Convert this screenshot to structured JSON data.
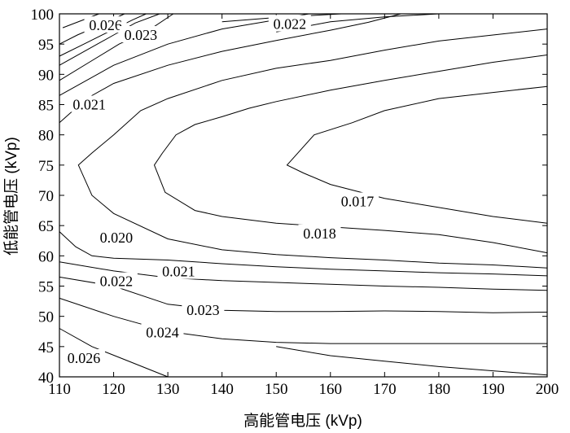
{
  "chart_data": {
    "type": "contour",
    "xlabel": "高能管电压 (kVp)",
    "ylabel": "低能管电压 (kVp)",
    "xlim": [
      110,
      200
    ],
    "ylim": [
      40,
      100
    ],
    "x_ticks": [
      "110",
      "120",
      "130",
      "140",
      "150",
      "160",
      "170",
      "180",
      "190",
      "200"
    ],
    "y_ticks": [
      "40",
      "45",
      "50",
      "55",
      "60",
      "65",
      "70",
      "75",
      "80",
      "85",
      "90",
      "95",
      "100"
    ],
    "grid": false,
    "contours": [
      {
        "level": "0.026",
        "points": [
          [
            110.6,
            97.7
          ],
          [
            117.3,
            100.0
          ]
        ],
        "label_at": [
          118.5,
          98.1
        ]
      },
      {
        "level": "0.026",
        "points": [
          [
            110.0,
            48.0
          ],
          [
            116.0,
            45.0
          ],
          [
            123.0,
            42.5
          ],
          [
            130.0,
            40.0
          ]
        ],
        "label_at": [
          114.5,
          43.1
        ]
      },
      {
        "level": "0.023",
        "points": [
          [
            110.0,
            95.0
          ],
          [
            113.3,
            96.5
          ],
          [
            118.0,
            98.3
          ],
          [
            122.0,
            100.0
          ]
        ],
        "label_at": null
      },
      {
        "level": "0.023",
        "points": [
          [
            110.0,
            93.0
          ],
          [
            114.5,
            95.0
          ],
          [
            119.0,
            97.0
          ],
          [
            123.5,
            99.0
          ],
          [
            126.0,
            100.0
          ]
        ],
        "label_at": null
      },
      {
        "level": "0.023",
        "points": [
          [
            110.0,
            91.5
          ],
          [
            115.0,
            94.0
          ],
          [
            120.0,
            96.5
          ],
          [
            124.0,
            98.5
          ],
          [
            128.5,
            100.0
          ]
        ],
        "label_at": null
      },
      {
        "level": "0.023",
        "points": [
          [
            110.0,
            89.0
          ],
          [
            115.5,
            92.0
          ],
          [
            121.0,
            95.0
          ],
          [
            126.5,
            97.3
          ],
          [
            131.0,
            100.0
          ]
        ],
        "label_at": [
          125.0,
          96.5
        ]
      },
      {
        "level": "0.022",
        "points": [
          [
            110.0,
            86.5
          ],
          [
            120.0,
            91.5
          ],
          [
            130.0,
            95.0
          ],
          [
            140.0,
            97.5
          ],
          [
            150.0,
            99.0
          ],
          [
            156.0,
            100.0
          ]
        ],
        "label_at": [
          152.5,
          98.3
        ]
      },
      {
        "level": "0.021",
        "points": [
          [
            110.0,
            82.0
          ],
          [
            115.0,
            86.0
          ],
          [
            120.0,
            88.5
          ],
          [
            130.0,
            91.5
          ],
          [
            140.0,
            93.8
          ],
          [
            150.0,
            95.6
          ],
          [
            160.0,
            97.3
          ],
          [
            167.0,
            98.6
          ],
          [
            173.0,
            100.0
          ]
        ],
        "label_at": [
          115.5,
          85.0
        ]
      },
      {
        "level": "0.020",
        "points": [
          [
            140.0,
            98.7
          ],
          [
            150.0,
            99.4
          ],
          [
            160.0,
            99.9
          ],
          [
            162.0,
            100.0
          ]
        ],
        "label_at": null
      },
      {
        "level": "0.020",
        "points": [
          [
            150.0,
            97.0
          ],
          [
            160.0,
            98.7
          ],
          [
            170.0,
            99.5
          ],
          [
            180.0,
            100.0
          ],
          [
            185.0,
            100.0
          ]
        ],
        "label_at": null
      },
      {
        "level": "0.020",
        "points": [
          [
            200.0,
            97.5
          ],
          [
            190.0,
            96.5
          ],
          [
            180.0,
            95.5
          ],
          [
            170.0,
            94.0
          ],
          [
            160.0,
            92.3
          ],
          [
            150.0,
            91.0
          ],
          [
            140.0,
            89.0
          ],
          [
            130.0,
            86.0
          ],
          [
            125.0,
            84.0
          ],
          [
            120.0,
            80.0
          ],
          [
            116.0,
            77.0
          ],
          [
            113.5,
            75.0
          ],
          [
            116.0,
            70.0
          ],
          [
            120.0,
            67.0
          ],
          [
            130.0,
            62.8
          ],
          [
            140.0,
            61.0
          ],
          [
            150.0,
            60.2
          ],
          [
            160.0,
            59.7
          ],
          [
            170.0,
            59.3
          ],
          [
            180.0,
            58.8
          ],
          [
            190.0,
            58.5
          ],
          [
            200.0,
            58.0
          ]
        ],
        "label_at": [
          120.5,
          63.0
        ]
      },
      {
        "level": "0.018",
        "points": [
          [
            200.0,
            93.2
          ],
          [
            190.0,
            92.0
          ],
          [
            180.0,
            90.5
          ],
          [
            170.0,
            89.0
          ],
          [
            160.0,
            87.4
          ],
          [
            150.0,
            85.5
          ],
          [
            145.0,
            84.4
          ],
          [
            140.0,
            83.0
          ],
          [
            135.0,
            81.7
          ],
          [
            131.5,
            80.0
          ],
          [
            129.0,
            77.0
          ],
          [
            127.5,
            75.0
          ],
          [
            129.5,
            70.5
          ],
          [
            135.0,
            67.5
          ],
          [
            140.0,
            66.5
          ],
          [
            150.0,
            65.4
          ],
          [
            160.0,
            64.8
          ],
          [
            170.0,
            64.2
          ],
          [
            180.0,
            63.5
          ],
          [
            190.0,
            62.2
          ],
          [
            200.0,
            60.5
          ]
        ],
        "label_at": [
          158.0,
          63.7
        ]
      },
      {
        "level": "0.017",
        "points": [
          [
            200.0,
            88.0
          ],
          [
            190.0,
            87.0
          ],
          [
            180.0,
            86.0
          ],
          [
            170.0,
            84.0
          ],
          [
            164.0,
            82.0
          ],
          [
            157.0,
            80.0
          ],
          [
            152.0,
            75.0
          ],
          [
            155.0,
            73.7
          ],
          [
            160.0,
            71.8
          ],
          [
            170.0,
            69.5
          ],
          [
            180.0,
            68.0
          ],
          [
            190.0,
            66.5
          ],
          [
            200.0,
            65.4
          ]
        ],
        "label_at": [
          165.0,
          69.0
        ]
      },
      {
        "level": "0.021",
        "points": [
          [
            110.0,
            64.0
          ],
          [
            113.0,
            61.5
          ],
          [
            116.0,
            60.0
          ],
          [
            120.0,
            59.6
          ],
          [
            130.0,
            59.3
          ],
          [
            140.0,
            58.7
          ],
          [
            150.0,
            58.2
          ],
          [
            160.0,
            57.8
          ],
          [
            170.0,
            57.5
          ],
          [
            180.0,
            57.2
          ],
          [
            190.0,
            57.0
          ],
          [
            200.0,
            56.7
          ]
        ],
        "label_at": [
          132.0,
          57.4
        ]
      },
      {
        "level": "0.022",
        "points": [
          [
            110.0,
            59.0
          ],
          [
            120.0,
            57.5
          ],
          [
            130.0,
            56.4
          ],
          [
            140.0,
            55.9
          ],
          [
            150.0,
            55.6
          ],
          [
            160.0,
            55.3
          ],
          [
            170.0,
            55.0
          ],
          [
            180.0,
            54.8
          ],
          [
            190.0,
            54.5
          ],
          [
            200.0,
            54.3
          ]
        ],
        "label_at": [
          120.5,
          55.8
        ]
      },
      {
        "level": "0.023",
        "points": [
          [
            110.0,
            56.5
          ],
          [
            120.0,
            55.0
          ],
          [
            130.0,
            52.0
          ],
          [
            140.0,
            51.0
          ],
          [
            150.0,
            50.8
          ],
          [
            160.0,
            50.8
          ],
          [
            170.0,
            50.9
          ],
          [
            180.0,
            50.8
          ],
          [
            190.0,
            50.6
          ],
          [
            200.0,
            50.7
          ]
        ],
        "label_at": [
          136.5,
          51.0
        ]
      },
      {
        "level": "0.024",
        "points": [
          [
            110.0,
            53.0
          ],
          [
            120.0,
            50.0
          ],
          [
            130.0,
            47.5
          ],
          [
            140.0,
            46.3
          ],
          [
            150.0,
            45.7
          ],
          [
            160.0,
            45.5
          ],
          [
            170.0,
            45.5
          ],
          [
            180.0,
            45.5
          ],
          [
            190.0,
            45.5
          ],
          [
            200.0,
            45.5
          ]
        ],
        "label_at": [
          129.0,
          47.3
        ]
      },
      {
        "level": "0.024",
        "points": [
          [
            150.0,
            45.0
          ],
          [
            160.0,
            43.5
          ],
          [
            170.0,
            42.6
          ],
          [
            180.0,
            41.7
          ],
          [
            190.0,
            41.0
          ],
          [
            200.0,
            40.3
          ]
        ],
        "label_at": null
      }
    ]
  }
}
